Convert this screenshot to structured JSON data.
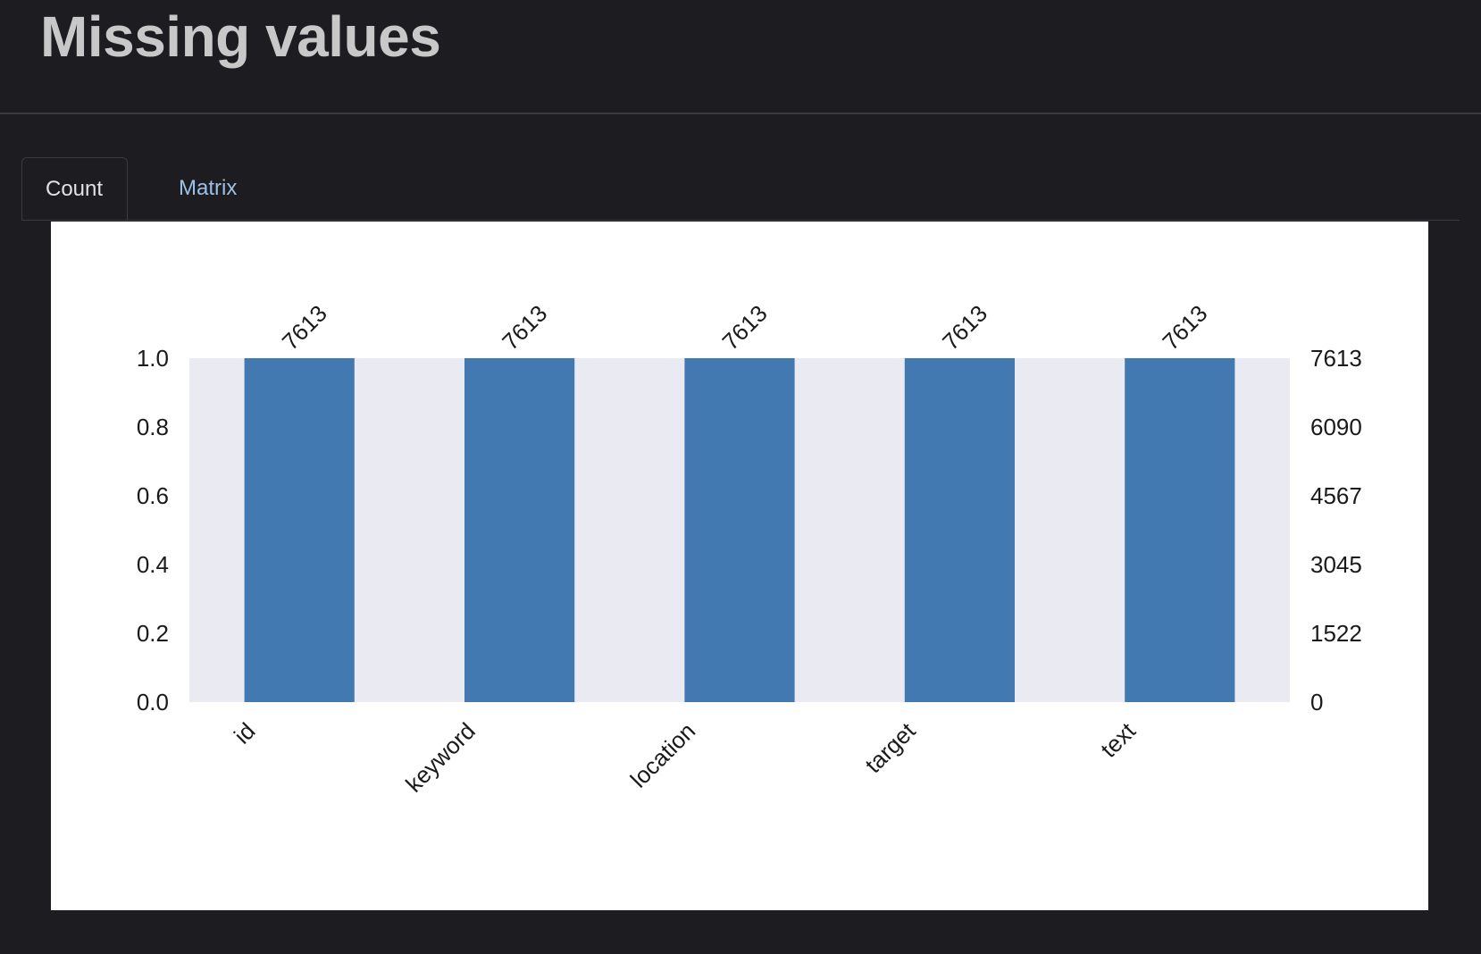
{
  "section": {
    "title": "Missing values"
  },
  "tabs": [
    {
      "label": "Count",
      "active": true
    },
    {
      "label": "Matrix",
      "active": false
    }
  ],
  "colors": {
    "background": "#1c1c21",
    "bar": "#4279b0",
    "plot_area": "#eaeaf2",
    "tab_link": "#9ec0e6"
  },
  "chart_data": {
    "type": "bar",
    "categories": [
      "id",
      "keyword",
      "location",
      "target",
      "text"
    ],
    "values": [
      7613,
      7613,
      7613,
      7613,
      7613
    ],
    "value_labels": [
      "7613",
      "7613",
      "7613",
      "7613",
      "7613"
    ],
    "fraction_values": [
      1.0,
      1.0,
      1.0,
      1.0,
      1.0
    ],
    "ylim": [
      0,
      1.0
    ],
    "left_ticks": [
      "0.0",
      "0.2",
      "0.4",
      "0.6",
      "0.8",
      "1.0"
    ],
    "right_ticks": [
      "0",
      "1522",
      "3045",
      "4567",
      "6090",
      "7613"
    ],
    "xlabel": "",
    "ylabel": "",
    "grid": false
  }
}
